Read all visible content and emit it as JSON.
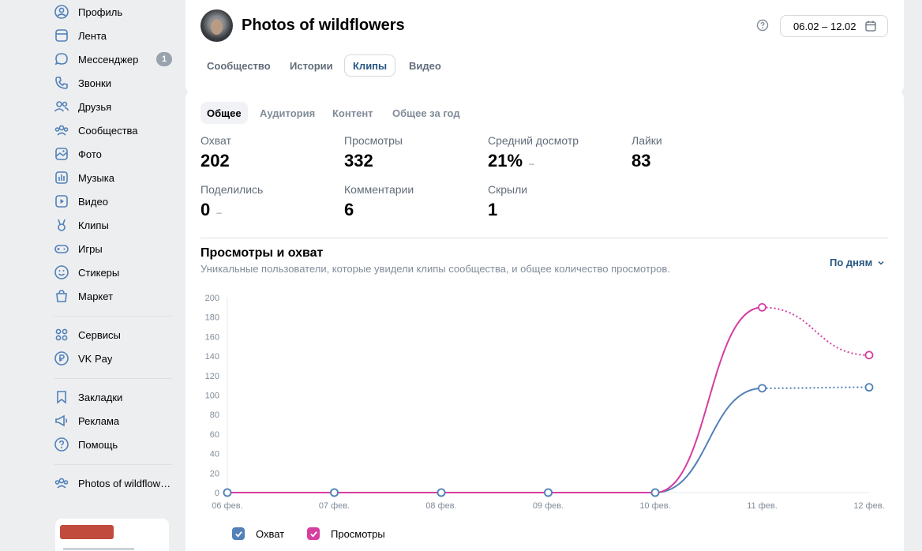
{
  "sidebar": {
    "items": [
      {
        "label": "Профиль",
        "icon": "user-circle-icon"
      },
      {
        "label": "Лента",
        "icon": "newsfeed-icon"
      },
      {
        "label": "Мессенджер",
        "icon": "message-icon",
        "badge": "1"
      },
      {
        "label": "Звонки",
        "icon": "phone-icon"
      },
      {
        "label": "Друзья",
        "icon": "friends-icon"
      },
      {
        "label": "Сообщества",
        "icon": "communities-icon"
      },
      {
        "label": "Фото",
        "icon": "photo-icon"
      },
      {
        "label": "Музыка",
        "icon": "music-icon"
      },
      {
        "label": "Видео",
        "icon": "video-icon"
      },
      {
        "label": "Клипы",
        "icon": "clips-icon"
      },
      {
        "label": "Игры",
        "icon": "gamepad-icon"
      },
      {
        "label": "Стикеры",
        "icon": "smile-icon"
      },
      {
        "label": "Маркет",
        "icon": "market-bag-icon"
      },
      {
        "label": "Сервисы",
        "icon": "services-grid-icon"
      },
      {
        "label": "VK Pay",
        "icon": "vkpay-icon"
      },
      {
        "label": "Закладки",
        "icon": "bookmark-icon"
      },
      {
        "label": "Реклама",
        "icon": "megaphone-icon"
      },
      {
        "label": "Помощь",
        "icon": "help-circle-icon"
      },
      {
        "label": "Photos of wildflowers",
        "icon": "community-group-icon"
      }
    ]
  },
  "header": {
    "title": "Photos of wildflowers",
    "date_range": "06.02 – 12.02",
    "tabs": [
      {
        "label": "Сообщество",
        "active": false
      },
      {
        "label": "Истории",
        "active": false
      },
      {
        "label": "Клипы",
        "active": true
      },
      {
        "label": "Видео",
        "active": false
      }
    ]
  },
  "main": {
    "subtabs": [
      {
        "label": "Общее",
        "active": true
      },
      {
        "label": "Аудитория",
        "active": false
      },
      {
        "label": "Контент",
        "active": false
      },
      {
        "label": "Общее за год",
        "active": false
      }
    ],
    "stats": [
      {
        "label": "Охват",
        "value": "202",
        "dash": ""
      },
      {
        "label": "Просмотры",
        "value": "332",
        "dash": ""
      },
      {
        "label": "Средний досмотр",
        "value": "21%",
        "dash": "–"
      },
      {
        "label": "Лайки",
        "value": "83",
        "dash": ""
      },
      {
        "label": "Поделились",
        "value": "0",
        "dash": "–"
      },
      {
        "label": "Комментарии",
        "value": "6",
        "dash": ""
      },
      {
        "label": "Скрыли",
        "value": "1",
        "dash": ""
      }
    ],
    "chart_title": "Просмотры и охват",
    "chart_subtitle": "Уникальные пользователи, которые увидели клипы сообщества, и общее количество просмотров.",
    "period_label": "По дням"
  },
  "colors": {
    "reach": "#5181b8",
    "views": "#d43fa0",
    "accent": "#2a5885"
  },
  "chart_data": {
    "type": "line",
    "categories": [
      "06 фев.",
      "07 фев.",
      "08 фев.",
      "09 фев.",
      "10 фев.",
      "11 фев.",
      "12 фев."
    ],
    "ylim": [
      0,
      200
    ],
    "yticks": [
      0,
      20,
      40,
      60,
      80,
      100,
      120,
      140,
      160,
      180,
      200
    ],
    "grid": false,
    "legend_position": "bottom-left",
    "series": [
      {
        "name": "Охват",
        "color": "#5181b8",
        "values": [
          0,
          0,
          0,
          0,
          0,
          107,
          108
        ]
      },
      {
        "name": "Просмотры",
        "color": "#d43fa0",
        "values": [
          0,
          0,
          0,
          0,
          0,
          190,
          141
        ]
      }
    ],
    "dashed_last_segment": true
  }
}
